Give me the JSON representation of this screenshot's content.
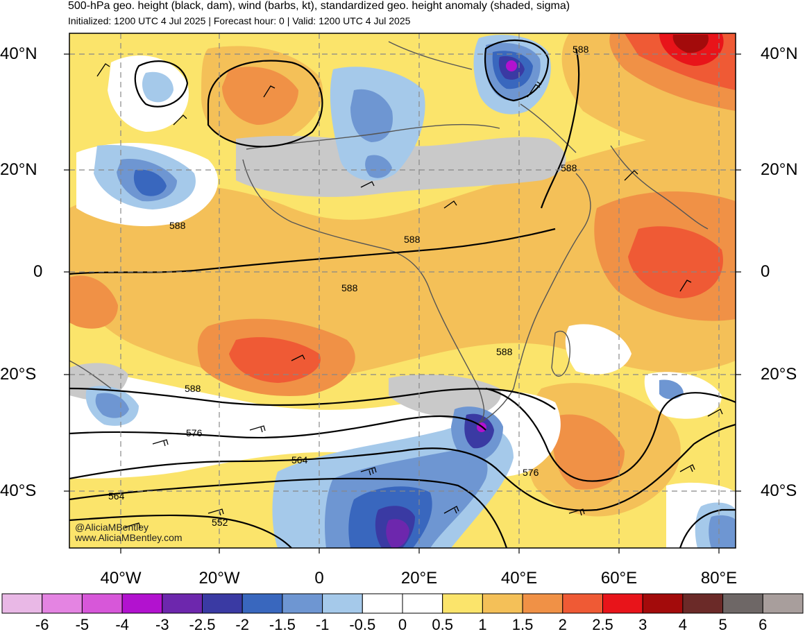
{
  "header": {
    "title": "500-hPa geo. height (black, dam), wind (barbs, kt), standardized geo. height anomaly (shaded, sigma)",
    "subtitle": "Initialized: 1200 UTC 4 Jul 2025 | Forecast hour: 0 | Valid: 1200 UTC 4 Jul 2025"
  },
  "lat_labels": [
    "40°N",
    "20°N",
    "0",
    "20°S",
    "40°S"
  ],
  "lon_labels": [
    "40°W",
    "20°W",
    "0",
    "20°E",
    "40°E",
    "60°E",
    "80°E"
  ],
  "contour_labels": [
    "588",
    "588",
    "588",
    "588",
    "588",
    "588",
    "588",
    "576",
    "576",
    "564",
    "564",
    "552"
  ],
  "credits": {
    "handle": "@AliciaMBentley",
    "site": "www.AliciaMBentley.com"
  },
  "colorbar": {
    "labels": [
      "-6",
      "-5",
      "-4",
      "-3",
      "-2.5",
      "-2",
      "-1.5",
      "-1",
      "-0.5",
      "0",
      "0.5",
      "1",
      "1.5",
      "2",
      "2.5",
      "3",
      "4",
      "5",
      "6"
    ],
    "colors": [
      "#e9b8e6",
      "#e484e2",
      "#d757d9",
      "#b212cf",
      "#6d27ad",
      "#3a3aa3",
      "#3967be",
      "#6e96d2",
      "#a5c9ea",
      "#ffffff",
      "#ffffff",
      "#fbe46b",
      "#f4c058",
      "#f09146",
      "#ef5a35",
      "#e8141a",
      "#a30b0b",
      "#6b2a28",
      "#6e6766",
      "#a89e9c"
    ]
  }
}
